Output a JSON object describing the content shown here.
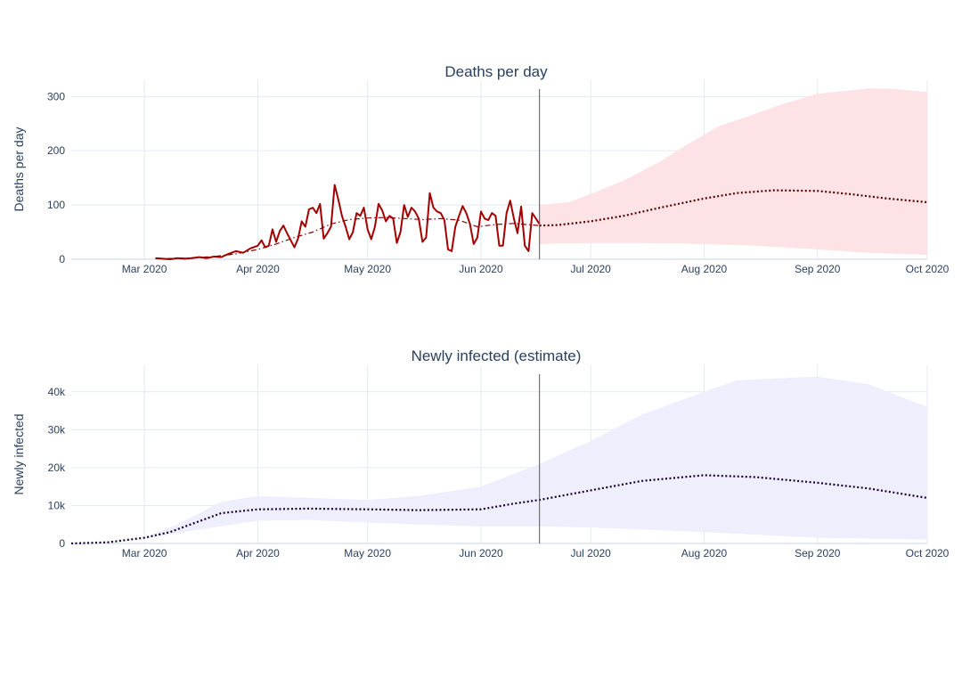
{
  "chart_data": [
    {
      "type": "line",
      "title": "Deaths per day",
      "xlabel": "",
      "ylabel": "Deaths per day",
      "xlim": [
        "2020-02-10",
        "2020-10-01"
      ],
      "ylim": [
        0,
        330
      ],
      "x_ticks": [
        {
          "date": "2020-03-01",
          "label": "Mar 2020"
        },
        {
          "date": "2020-04-01",
          "label": "Apr 2020"
        },
        {
          "date": "2020-05-01",
          "label": "May 2020"
        },
        {
          "date": "2020-06-01",
          "label": "Jun 2020"
        },
        {
          "date": "2020-07-01",
          "label": "Jul 2020"
        },
        {
          "date": "2020-08-01",
          "label": "Aug 2020"
        },
        {
          "date": "2020-09-01",
          "label": "Sep 2020"
        },
        {
          "date": "2020-10-01",
          "label": "Oct 2020"
        }
      ],
      "y_ticks": [
        {
          "value": 0,
          "label": "0"
        },
        {
          "value": 100,
          "label": "100"
        },
        {
          "value": 200,
          "label": "200"
        },
        {
          "value": 300,
          "label": "300"
        }
      ],
      "vline_date": "2020-06-17",
      "grid": true,
      "colors": {
        "band": "#fde3e5",
        "observed": "#a30000",
        "fit": "#8b0000",
        "forecast": "#5a0000"
      },
      "series": [
        {
          "style": "solid",
          "points": [
            [
              "2020-03-04",
              2
            ],
            [
              "2020-03-06",
              1
            ],
            [
              "2020-03-08",
              0
            ],
            [
              "2020-03-10",
              2
            ],
            [
              "2020-03-12",
              1
            ],
            [
              "2020-03-14",
              2
            ],
            [
              "2020-03-16",
              4
            ],
            [
              "2020-03-18",
              2
            ],
            [
              "2020-03-20",
              5
            ],
            [
              "2020-03-22",
              4
            ],
            [
              "2020-03-24",
              10
            ],
            [
              "2020-03-26",
              15
            ],
            [
              "2020-03-28",
              12
            ],
            [
              "2020-03-30",
              20
            ],
            [
              "2020-04-01",
              25
            ],
            [
              "2020-04-02",
              35
            ],
            [
              "2020-04-03",
              22
            ],
            [
              "2020-04-04",
              25
            ],
            [
              "2020-04-05",
              55
            ],
            [
              "2020-04-06",
              32
            ],
            [
              "2020-04-07",
              52
            ],
            [
              "2020-04-08",
              62
            ],
            [
              "2020-04-09",
              48
            ],
            [
              "2020-04-10",
              35
            ],
            [
              "2020-04-11",
              22
            ],
            [
              "2020-04-12",
              38
            ],
            [
              "2020-04-13",
              70
            ],
            [
              "2020-04-14",
              60
            ],
            [
              "2020-04-15",
              92
            ],
            [
              "2020-04-16",
              95
            ],
            [
              "2020-04-17",
              85
            ],
            [
              "2020-04-18",
              102
            ],
            [
              "2020-04-19",
              38
            ],
            [
              "2020-04-20",
              48
            ],
            [
              "2020-04-21",
              60
            ],
            [
              "2020-04-22",
              137
            ],
            [
              "2020-04-23",
              110
            ],
            [
              "2020-04-24",
              80
            ],
            [
              "2020-04-25",
              60
            ],
            [
              "2020-04-26",
              37
            ],
            [
              "2020-04-27",
              50
            ],
            [
              "2020-04-28",
              85
            ],
            [
              "2020-04-29",
              80
            ],
            [
              "2020-04-30",
              95
            ],
            [
              "2020-05-01",
              55
            ],
            [
              "2020-05-02",
              37
            ],
            [
              "2020-05-03",
              60
            ],
            [
              "2020-05-04",
              102
            ],
            [
              "2020-05-05",
              90
            ],
            [
              "2020-05-06",
              70
            ],
            [
              "2020-05-07",
              80
            ],
            [
              "2020-05-08",
              75
            ],
            [
              "2020-05-09",
              30
            ],
            [
              "2020-05-10",
              50
            ],
            [
              "2020-05-11",
              100
            ],
            [
              "2020-05-12",
              78
            ],
            [
              "2020-05-13",
              95
            ],
            [
              "2020-05-14",
              88
            ],
            [
              "2020-05-15",
              75
            ],
            [
              "2020-05-16",
              32
            ],
            [
              "2020-05-17",
              40
            ],
            [
              "2020-05-18",
              122
            ],
            [
              "2020-05-19",
              95
            ],
            [
              "2020-05-20",
              88
            ],
            [
              "2020-05-21",
              85
            ],
            [
              "2020-05-22",
              72
            ],
            [
              "2020-05-23",
              18
            ],
            [
              "2020-05-24",
              15
            ],
            [
              "2020-05-25",
              60
            ],
            [
              "2020-05-26",
              80
            ],
            [
              "2020-05-27",
              98
            ],
            [
              "2020-05-28",
              85
            ],
            [
              "2020-05-29",
              65
            ],
            [
              "2020-05-30",
              28
            ],
            [
              "2020-05-31",
              40
            ],
            [
              "2020-06-01",
              88
            ],
            [
              "2020-06-02",
              75
            ],
            [
              "2020-06-03",
              72
            ],
            [
              "2020-06-04",
              85
            ],
            [
              "2020-06-05",
              80
            ],
            [
              "2020-06-06",
              25
            ],
            [
              "2020-06-07",
              25
            ],
            [
              "2020-06-08",
              85
            ],
            [
              "2020-06-09",
              108
            ],
            [
              "2020-06-10",
              75
            ],
            [
              "2020-06-11",
              48
            ],
            [
              "2020-06-12",
              97
            ],
            [
              "2020-06-13",
              25
            ],
            [
              "2020-06-14",
              15
            ],
            [
              "2020-06-15",
              85
            ],
            [
              "2020-06-16",
              75
            ],
            [
              "2020-06-17",
              65
            ]
          ]
        },
        {
          "style": "dashdot",
          "points": [
            [
              "2020-03-04",
              1
            ],
            [
              "2020-03-12",
              2
            ],
            [
              "2020-03-20",
              5
            ],
            [
              "2020-03-26",
              10
            ],
            [
              "2020-04-01",
              18
            ],
            [
              "2020-04-06",
              28
            ],
            [
              "2020-04-11",
              40
            ],
            [
              "2020-04-16",
              50
            ],
            [
              "2020-04-21",
              65
            ],
            [
              "2020-04-26",
              73
            ],
            [
              "2020-05-01",
              76
            ],
            [
              "2020-05-06",
              77
            ],
            [
              "2020-05-11",
              75
            ],
            [
              "2020-05-16",
              73
            ],
            [
              "2020-05-21",
              75
            ],
            [
              "2020-05-26",
              72
            ],
            [
              "2020-05-31",
              60
            ],
            [
              "2020-06-05",
              64
            ],
            [
              "2020-06-10",
              66
            ],
            [
              "2020-06-17",
              62
            ]
          ]
        },
        {
          "style": "dotted",
          "points": [
            [
              "2020-06-17",
              62
            ],
            [
              "2020-06-22",
              63
            ],
            [
              "2020-07-01",
              70
            ],
            [
              "2020-07-10",
              80
            ],
            [
              "2020-07-20",
              95
            ],
            [
              "2020-08-01",
              112
            ],
            [
              "2020-08-10",
              122
            ],
            [
              "2020-08-20",
              127
            ],
            [
              "2020-09-01",
              126
            ],
            [
              "2020-09-10",
              120
            ],
            [
              "2020-09-20",
              112
            ],
            [
              "2020-10-01",
              105
            ]
          ]
        }
      ],
      "band": {
        "upper": [
          [
            "2020-06-17",
            100
          ],
          [
            "2020-06-25",
            105
          ],
          [
            "2020-07-01",
            120
          ],
          [
            "2020-07-10",
            145
          ],
          [
            "2020-07-20",
            180
          ],
          [
            "2020-07-27",
            210
          ],
          [
            "2020-08-05",
            245
          ],
          [
            "2020-08-15",
            268
          ],
          [
            "2020-08-22",
            285
          ],
          [
            "2020-09-01",
            305
          ],
          [
            "2020-09-08",
            310
          ],
          [
            "2020-09-15",
            315
          ],
          [
            "2020-09-22",
            314
          ],
          [
            "2020-10-01",
            308
          ]
        ],
        "lower": [
          [
            "2020-06-17",
            28
          ],
          [
            "2020-07-01",
            30
          ],
          [
            "2020-07-15",
            30
          ],
          [
            "2020-08-01",
            28
          ],
          [
            "2020-08-15",
            25
          ],
          [
            "2020-09-01",
            18
          ],
          [
            "2020-09-15",
            12
          ],
          [
            "2020-10-01",
            8
          ]
        ]
      }
    },
    {
      "type": "line",
      "title": "Newly infected (estimate)",
      "xlabel": "",
      "ylabel": "Newly infected",
      "xlim": [
        "2020-02-10",
        "2020-10-01"
      ],
      "ylim": [
        0,
        47000
      ],
      "x_ticks": [
        {
          "date": "2020-03-01",
          "label": "Mar 2020"
        },
        {
          "date": "2020-04-01",
          "label": "Apr 2020"
        },
        {
          "date": "2020-05-01",
          "label": "May 2020"
        },
        {
          "date": "2020-06-01",
          "label": "Jun 2020"
        },
        {
          "date": "2020-07-01",
          "label": "Jul 2020"
        },
        {
          "date": "2020-08-01",
          "label": "Aug 2020"
        },
        {
          "date": "2020-09-01",
          "label": "Sep 2020"
        },
        {
          "date": "2020-10-01",
          "label": "Oct 2020"
        }
      ],
      "y_ticks": [
        {
          "value": 0,
          "label": "0"
        },
        {
          "value": 10000,
          "label": "10k"
        },
        {
          "value": 20000,
          "label": "20k"
        },
        {
          "value": 30000,
          "label": "30k"
        },
        {
          "value": 40000,
          "label": "40k"
        }
      ],
      "vline_date": "2020-06-17",
      "grid": true,
      "colors": {
        "band": "#efeefd",
        "forecast": "#1a0033"
      },
      "series": [
        {
          "style": "dotted",
          "points": [
            [
              "2020-02-10",
              0
            ],
            [
              "2020-02-20",
              300
            ],
            [
              "2020-03-01",
              1500
            ],
            [
              "2020-03-08",
              3000
            ],
            [
              "2020-03-15",
              5500
            ],
            [
              "2020-03-22",
              8000
            ],
            [
              "2020-04-01",
              9000
            ],
            [
              "2020-04-15",
              9200
            ],
            [
              "2020-05-01",
              9000
            ],
            [
              "2020-05-15",
              8800
            ],
            [
              "2020-06-01",
              9000
            ],
            [
              "2020-06-10",
              10500
            ],
            [
              "2020-06-17",
              11500
            ],
            [
              "2020-07-01",
              14000
            ],
            [
              "2020-07-15",
              16500
            ],
            [
              "2020-08-01",
              18000
            ],
            [
              "2020-08-15",
              17500
            ],
            [
              "2020-09-01",
              16000
            ],
            [
              "2020-09-15",
              14500
            ],
            [
              "2020-10-01",
              12000
            ]
          ]
        }
      ],
      "band": {
        "upper": [
          [
            "2020-03-01",
            1500
          ],
          [
            "2020-03-10",
            5000
          ],
          [
            "2020-03-22",
            11000
          ],
          [
            "2020-04-01",
            12500
          ],
          [
            "2020-04-15",
            12000
          ],
          [
            "2020-05-01",
            11500
          ],
          [
            "2020-05-15",
            12500
          ],
          [
            "2020-06-01",
            15000
          ],
          [
            "2020-06-17",
            21000
          ],
          [
            "2020-07-01",
            27000
          ],
          [
            "2020-07-15",
            34000
          ],
          [
            "2020-08-01",
            40000
          ],
          [
            "2020-08-10",
            43000
          ],
          [
            "2020-08-20",
            43500
          ],
          [
            "2020-09-01",
            44000
          ],
          [
            "2020-09-15",
            42000
          ],
          [
            "2020-10-01",
            36000
          ]
        ],
        "lower": [
          [
            "2020-03-01",
            1200
          ],
          [
            "2020-03-15",
            3500
          ],
          [
            "2020-04-01",
            6000
          ],
          [
            "2020-04-15",
            6200
          ],
          [
            "2020-05-01",
            5500
          ],
          [
            "2020-05-15",
            5000
          ],
          [
            "2020-06-01",
            4500
          ],
          [
            "2020-06-17",
            4500
          ],
          [
            "2020-07-01",
            4200
          ],
          [
            "2020-08-01",
            3000
          ],
          [
            "2020-09-01",
            1500
          ],
          [
            "2020-10-01",
            1000
          ]
        ]
      }
    }
  ]
}
